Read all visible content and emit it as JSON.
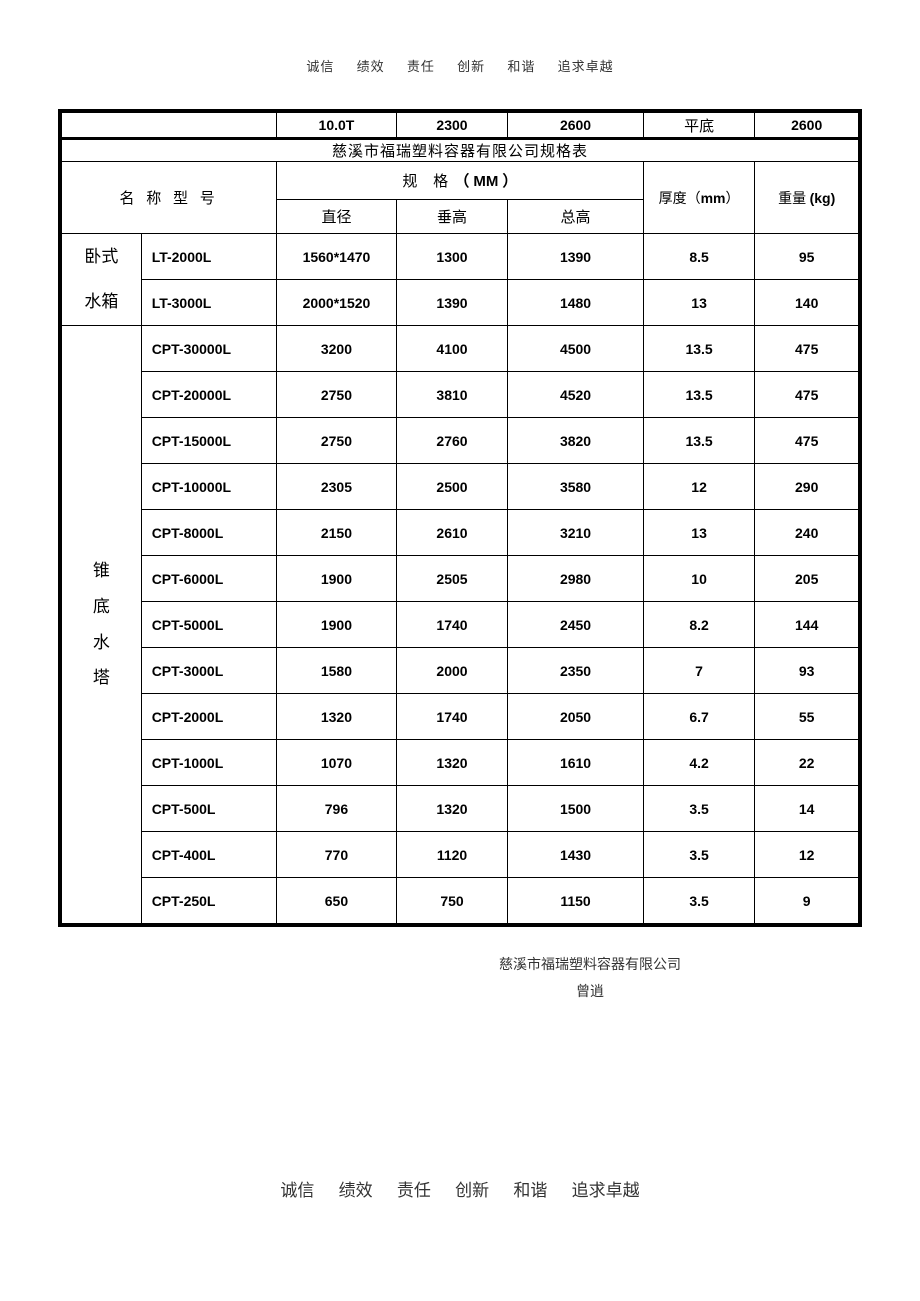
{
  "motto": [
    "诚信",
    "绩效",
    "责任",
    "创新",
    "和谐",
    "追求卓越"
  ],
  "top_row": {
    "c1": "10.0T",
    "c2": "2300",
    "c3": "2600",
    "c4": "平底",
    "c5": "2600"
  },
  "table_title": "慈溪市福瑞塑料容器有限公司规格表",
  "hdr": {
    "name": "名 称 型 号",
    "spec": "规   格",
    "mm_unit": "（ MM ）",
    "dia": "直径",
    "vh": "垂高",
    "th": "总高",
    "thk": "厚度（",
    "thk_unit": "mm",
    "thk_suf": "）",
    "wt": "重量",
    "wt_unit": "(kg)"
  },
  "categories": {
    "woshi": "卧式水箱",
    "zhuidi": "锥底水塔"
  },
  "rows_woshi": [
    {
      "model": "LT-2000L",
      "dia": "1560*1470",
      "vh": "1300",
      "th": "1390",
      "thk": "8.5",
      "wt": "95"
    },
    {
      "model": "LT-3000L",
      "dia": "2000*1520",
      "vh": "1390",
      "th": "1480",
      "thk": "13",
      "wt": "140"
    }
  ],
  "rows_zhuidi": [
    {
      "model": "CPT-30000L",
      "dia": "3200",
      "vh": "4100",
      "th": "4500",
      "thk": "13.5",
      "wt": "475"
    },
    {
      "model": "CPT-20000L",
      "dia": "2750",
      "vh": "3810",
      "th": "4520",
      "thk": "13.5",
      "wt": "475"
    },
    {
      "model": "CPT-15000L",
      "dia": "2750",
      "vh": "2760",
      "th": "3820",
      "thk": "13.5",
      "wt": "475"
    },
    {
      "model": "CPT-10000L",
      "dia": "2305",
      "vh": "2500",
      "th": "3580",
      "thk": "12",
      "wt": "290"
    },
    {
      "model": "CPT-8000L",
      "dia": "2150",
      "vh": "2610",
      "th": "3210",
      "thk": "13",
      "wt": "240"
    },
    {
      "model": "CPT-6000L",
      "dia": "1900",
      "vh": "2505",
      "th": "2980",
      "thk": "10",
      "wt": "205"
    },
    {
      "model": "CPT-5000L",
      "dia": "1900",
      "vh": "1740",
      "th": "2450",
      "thk": "8.2",
      "wt": "144"
    },
    {
      "model": "CPT-3000L",
      "dia": "1580",
      "vh": "2000",
      "th": "2350",
      "thk": "7",
      "wt": "93"
    },
    {
      "model": "CPT-2000L",
      "dia": "1320",
      "vh": "1740",
      "th": "2050",
      "thk": "6.7",
      "wt": "55"
    },
    {
      "model": "CPT-1000L",
      "dia": "1070",
      "vh": "1320",
      "th": "1610",
      "thk": "4.2",
      "wt": "22"
    },
    {
      "model": "CPT-500L",
      "dia": "796",
      "vh": "1320",
      "th": "1500",
      "thk": "3.5",
      "wt": "14"
    },
    {
      "model": "CPT-400L",
      "dia": "770",
      "vh": "1120",
      "th": "1430",
      "thk": "3.5",
      "wt": "12"
    },
    {
      "model": "CPT-250L",
      "dia": "650",
      "vh": "750",
      "th": "1150",
      "thk": "3.5",
      "wt": "9"
    }
  ],
  "footer": {
    "company": "慈溪市福瑞塑料容器有限公司",
    "person": "曾逍"
  },
  "col_widths": {
    "cat": "10%",
    "model": "17%",
    "dia": "15%",
    "vh": "14%",
    "th": "17%",
    "thk": "14%",
    "wt": "13%"
  }
}
